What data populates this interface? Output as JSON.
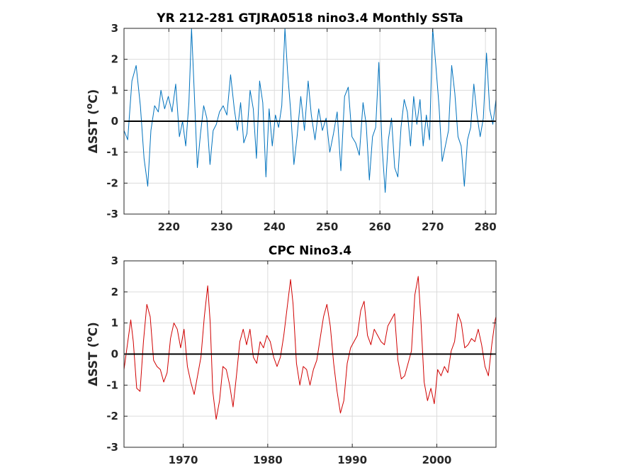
{
  "chart_data": [
    {
      "type": "line",
      "title": "YR 212-281 GTJRA0518 nino3.4 Monthly SSTa",
      "ylabel_prefix": "ΔSST (",
      "ylabel_super": "o",
      "ylabel_suffix": "C)",
      "xlim": [
        211.5,
        282
      ],
      "ylim": [
        -3,
        3
      ],
      "xticks": [
        220,
        230,
        240,
        250,
        260,
        270,
        280
      ],
      "xtick_labels": [
        "220",
        "230",
        "240",
        "250",
        "260",
        "270",
        "280"
      ],
      "yticks": [
        -3,
        -2,
        -1,
        0,
        1,
        2,
        3
      ],
      "ytick_labels": [
        "-3",
        "-2",
        "-1",
        "0",
        "1",
        "2",
        "3"
      ],
      "grid": true,
      "color": "#0072BD",
      "series": [
        {
          "x": [
            211.5,
            212.2,
            213.0,
            213.8,
            214.6,
            215.3,
            216.0,
            216.6,
            217.3,
            218.0,
            218.5,
            219.2,
            219.9,
            220.6,
            221.3,
            222.0,
            222.6,
            223.2,
            223.8,
            224.3,
            224.8,
            225.4,
            226.0,
            226.6,
            227.2,
            227.8,
            228.4,
            229.0,
            229.6,
            230.3,
            231.0,
            231.7,
            232.4,
            233.0,
            233.6,
            234.2,
            234.8,
            235.4,
            236.0,
            236.6,
            237.2,
            237.8,
            238.4,
            239.0,
            239.6,
            240.2,
            240.8,
            241.4,
            242.0,
            242.5,
            243.1,
            243.7,
            244.3,
            245.0,
            245.7,
            246.4,
            247.0,
            247.7,
            248.4,
            249.1,
            249.8,
            250.5,
            251.2,
            251.9,
            252.6,
            253.3,
            254.0,
            254.7,
            255.4,
            256.1,
            256.8,
            257.4,
            258.0,
            258.6,
            259.2,
            259.8,
            260.4,
            261.0,
            261.6,
            262.2,
            262.8,
            263.4,
            264.0,
            264.6,
            265.2,
            265.8,
            266.4,
            267.0,
            267.6,
            268.2,
            268.8,
            269.4,
            270.0,
            270.6,
            271.2,
            271.8,
            272.4,
            273.0,
            273.6,
            274.2,
            274.8,
            275.4,
            276.0,
            276.6,
            277.2,
            277.8,
            278.4,
            279.0,
            279.6,
            280.2,
            280.8,
            281.4,
            282.0
          ],
          "y": [
            -0.3,
            -0.6,
            1.3,
            1.8,
            0.5,
            -1.2,
            -2.1,
            -0.3,
            0.5,
            0.3,
            1.0,
            0.4,
            0.8,
            0.3,
            1.2,
            -0.5,
            0.0,
            -0.8,
            0.6,
            3.0,
            1.0,
            -1.5,
            -0.4,
            0.5,
            0.1,
            -1.4,
            -0.3,
            -0.1,
            0.3,
            0.5,
            0.2,
            1.5,
            0.4,
            -0.3,
            0.6,
            -0.7,
            -0.4,
            1.0,
            0.4,
            -1.2,
            1.3,
            0.6,
            -1.8,
            0.4,
            -0.8,
            0.2,
            -0.2,
            0.5,
            3.0,
            1.6,
            0.3,
            -1.4,
            -0.5,
            0.8,
            -0.3,
            1.3,
            0.2,
            -0.6,
            0.4,
            -0.3,
            0.1,
            -1.0,
            -0.4,
            0.3,
            -1.6,
            0.8,
            1.1,
            -0.5,
            -0.7,
            -1.1,
            0.6,
            -0.1,
            -1.9,
            -0.5,
            -0.2,
            1.9,
            -0.8,
            -2.3,
            -0.6,
            0.1,
            -1.5,
            -1.8,
            -0.2,
            0.7,
            0.3,
            -0.8,
            0.8,
            -0.1,
            0.7,
            -0.8,
            0.2,
            -0.6,
            3.0,
            1.8,
            0.5,
            -1.3,
            -0.8,
            -0.3,
            1.8,
            0.9,
            -0.5,
            -0.8,
            -2.1,
            -0.6,
            -0.2,
            1.2,
            0.2,
            -0.5,
            0.1,
            2.2,
            0.4,
            -0.1,
            0.7
          ]
        }
      ]
    },
    {
      "type": "line",
      "title": "CPC Nino3.4",
      "ylabel_prefix": "ΔSST (",
      "ylabel_super": "o",
      "ylabel_suffix": "C)",
      "xlim": [
        1963,
        2007
      ],
      "ylim": [
        -3,
        3
      ],
      "xticks": [
        1970,
        1980,
        1990,
        2000
      ],
      "xtick_labels": [
        "1970",
        "1980",
        "1990",
        "2000"
      ],
      "yticks": [
        -3,
        -2,
        -1,
        0,
        1,
        2,
        3
      ],
      "ytick_labels": [
        "-3",
        "-2",
        "-1",
        "0",
        "1",
        "2",
        "3"
      ],
      "grid": true,
      "color": "#D00000",
      "series": [
        {
          "x": [
            1963.0,
            1963.4,
            1963.8,
            1964.1,
            1964.5,
            1964.9,
            1965.3,
            1965.7,
            1966.1,
            1966.5,
            1966.9,
            1967.3,
            1967.7,
            1968.1,
            1968.5,
            1968.9,
            1969.3,
            1969.7,
            1970.1,
            1970.5,
            1970.9,
            1971.3,
            1971.7,
            1972.1,
            1972.5,
            1972.9,
            1973.2,
            1973.5,
            1973.9,
            1974.3,
            1974.7,
            1975.1,
            1975.5,
            1975.9,
            1976.3,
            1976.7,
            1977.1,
            1977.5,
            1977.9,
            1978.3,
            1978.7,
            1979.1,
            1979.5,
            1979.9,
            1980.3,
            1980.7,
            1981.1,
            1981.5,
            1981.9,
            1982.3,
            1982.7,
            1983.0,
            1983.4,
            1983.8,
            1984.2,
            1984.6,
            1985.0,
            1985.4,
            1985.8,
            1986.2,
            1986.6,
            1987.0,
            1987.4,
            1987.8,
            1988.2,
            1988.6,
            1989.0,
            1989.4,
            1989.8,
            1990.2,
            1990.6,
            1991.0,
            1991.4,
            1991.8,
            1992.2,
            1992.6,
            1993.0,
            1993.4,
            1993.8,
            1994.2,
            1994.6,
            1995.0,
            1995.4,
            1995.8,
            1996.2,
            1996.6,
            1997.0,
            1997.4,
            1997.8,
            1998.1,
            1998.5,
            1998.9,
            1999.3,
            1999.7,
            2000.1,
            2000.5,
            2000.9,
            2001.3,
            2001.7,
            2002.1,
            2002.5,
            2002.9,
            2003.3,
            2003.7,
            2004.1,
            2004.5,
            2004.9,
            2005.3,
            2005.7,
            2006.1,
            2006.5,
            2006.9,
            2007.0
          ],
          "y": [
            -0.5,
            0.3,
            1.1,
            0.4,
            -1.1,
            -1.2,
            0.4,
            1.6,
            1.2,
            -0.2,
            -0.4,
            -0.5,
            -0.9,
            -0.6,
            0.5,
            1.0,
            0.8,
            0.2,
            0.8,
            -0.4,
            -0.9,
            -1.3,
            -0.7,
            -0.1,
            1.2,
            2.2,
            1.0,
            -1.2,
            -2.1,
            -1.5,
            -0.4,
            -0.5,
            -1.0,
            -1.7,
            -0.7,
            0.4,
            0.8,
            0.3,
            0.8,
            -0.1,
            -0.3,
            0.4,
            0.2,
            0.6,
            0.4,
            -0.1,
            -0.4,
            -0.1,
            0.6,
            1.5,
            2.4,
            1.6,
            -0.3,
            -1.0,
            -0.4,
            -0.5,
            -1.0,
            -0.5,
            -0.2,
            0.5,
            1.2,
            1.6,
            0.9,
            -0.3,
            -1.2,
            -1.9,
            -1.5,
            -0.3,
            0.2,
            0.4,
            0.6,
            1.4,
            1.7,
            0.6,
            0.3,
            0.8,
            0.6,
            0.4,
            0.3,
            0.9,
            1.1,
            1.3,
            -0.2,
            -0.8,
            -0.7,
            -0.3,
            0.1,
            1.9,
            2.5,
            1.2,
            -0.9,
            -1.5,
            -1.1,
            -1.6,
            -0.5,
            -0.7,
            -0.4,
            -0.6,
            0.1,
            0.4,
            1.3,
            1.0,
            0.2,
            0.3,
            0.5,
            0.4,
            0.8,
            0.3,
            -0.4,
            -0.7,
            0.3,
            1.1,
            1.2
          ]
        }
      ]
    }
  ]
}
